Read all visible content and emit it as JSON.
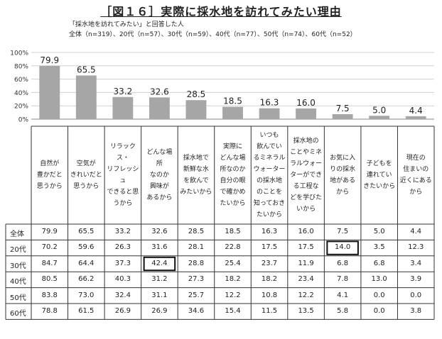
{
  "title": "［図１６］実際に採水地を訪れてみたい理由",
  "subtitle_lines": [
    "「採水地を訪れてみたい」と回答した人",
    "全体（n=319）、20代（n=57）、30代（n=59）、40代（n=77）、50代（n=74）、60代（n=52）"
  ],
  "chart_data": {
    "type": "bar",
    "title": "［図１６］実際に採水地を訪れてみたい理由",
    "ylim": [
      0,
      100
    ],
    "y_ticks": [
      "0%",
      "20%",
      "40%",
      "60%",
      "80%",
      "100%"
    ],
    "bar_color": "#a6a6a6",
    "categories": [
      "自然が\n豊かだと\n思うから",
      "空気が\nきれいだと\n思うから",
      "リラックス・\nリフレッシュ\nできると思\nうから",
      "どんな場\n所\nなのか\n興味が\nあるから",
      "採水地で\n新鮮な水\nを飲んで\nみたいから",
      "実際に\nどんな場\n所なのか\n自分の眼\nで確かめ\nたいから",
      "いつも\n飲んでい\nるミネラル\nウォーター\nの採水地\nのことを\n知っておき\nたいから",
      "採水地の\nことやミネ\nラルウォー\nターができ\nる工程な\nどを学びた\nいから",
      "お気に入\nりの採水\n地がある\nから",
      "子どもを\n連れてい\nきたいから",
      "現在の\n住まいの\n近くにある\nから"
    ],
    "values": [
      79.9,
      65.5,
      33.2,
      32.6,
      28.5,
      18.5,
      16.3,
      16.0,
      7.5,
      5.0,
      4.4
    ],
    "value_labels": [
      "79.9",
      "65.5",
      "33.2",
      "32.6",
      "28.5",
      "18.5",
      "16.3",
      "16.0",
      "7.5",
      "5.0",
      "4.4"
    ],
    "table": {
      "rows": [
        {
          "label": "全体",
          "values": [
            "79.9",
            "65.5",
            "33.2",
            "32.6",
            "28.5",
            "18.5",
            "16.3",
            "16.0",
            "7.5",
            "5.0",
            "4.4"
          ]
        },
        {
          "label": "20代",
          "values": [
            "70.2",
            "59.6",
            "26.3",
            "31.6",
            "28.1",
            "22.8",
            "17.5",
            "17.5",
            "14.0",
            "3.5",
            "12.3"
          ]
        },
        {
          "label": "30代",
          "values": [
            "84.7",
            "64.4",
            "37.3",
            "42.4",
            "28.8",
            "25.4",
            "23.7",
            "11.9",
            "6.8",
            "6.8",
            "3.4"
          ]
        },
        {
          "label": "40代",
          "values": [
            "80.5",
            "66.2",
            "40.3",
            "31.2",
            "27.3",
            "18.2",
            "18.2",
            "23.4",
            "7.8",
            "13.0",
            "3.9"
          ]
        },
        {
          "label": "50代",
          "values": [
            "83.8",
            "73.0",
            "32.4",
            "31.1",
            "25.7",
            "12.2",
            "10.8",
            "12.2",
            "4.1",
            "0.0",
            "0.0"
          ]
        },
        {
          "label": "60代",
          "values": [
            "78.8",
            "61.5",
            "26.9",
            "26.9",
            "34.6",
            "15.4",
            "11.5",
            "13.5",
            "5.8",
            "0.0",
            "3.8"
          ]
        }
      ],
      "highlighted_cells": [
        {
          "row": 1,
          "col": 8
        },
        {
          "row": 2,
          "col": 3
        }
      ]
    }
  }
}
